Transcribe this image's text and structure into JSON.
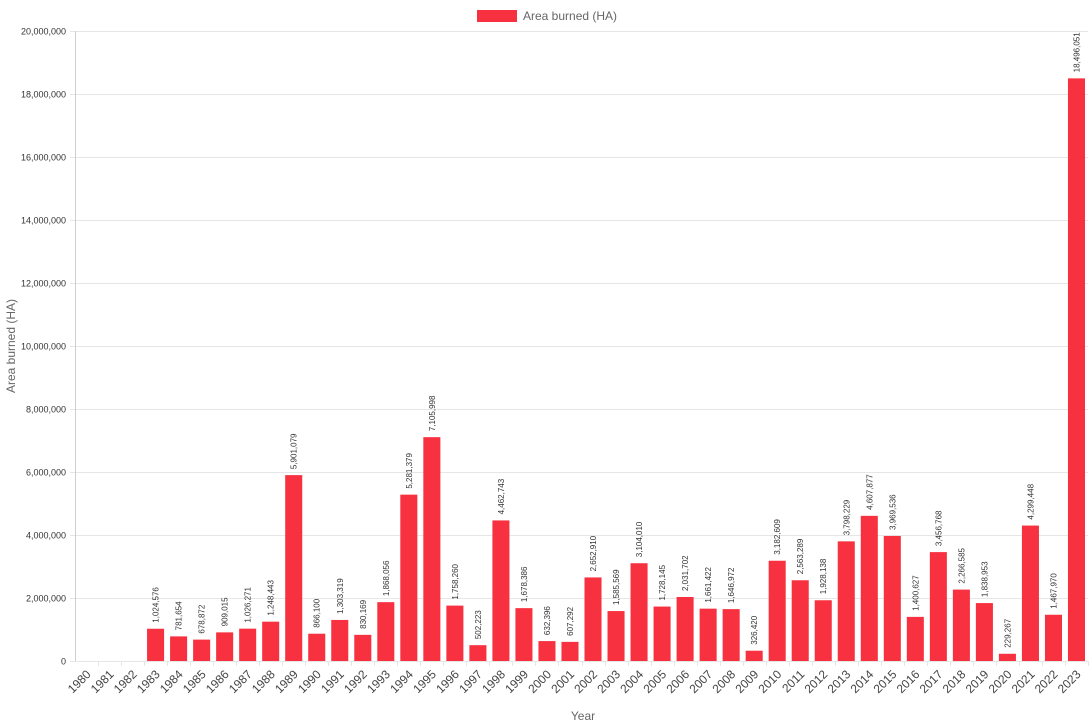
{
  "chart_data": {
    "type": "bar",
    "title": "",
    "xlabel": "Year",
    "ylabel": "Area burned (HA)",
    "ylim": [
      0,
      20000000
    ],
    "yticks": [
      0,
      2000000,
      4000000,
      6000000,
      8000000,
      10000000,
      12000000,
      14000000,
      16000000,
      18000000,
      20000000
    ],
    "ytick_labels": [
      "0",
      "2,000,000",
      "4,000,000",
      "6,000,000",
      "8,000,000",
      "10,000,000",
      "12,000,000",
      "14,000,000",
      "16,000,000",
      "18,000,000",
      "20,000,000"
    ],
    "grid": true,
    "legend": {
      "position": "top-center",
      "entries": [
        "Area burned (HA)"
      ]
    },
    "categories": [
      "1980",
      "1981",
      "1982",
      "1983",
      "1984",
      "1985",
      "1986",
      "1987",
      "1988",
      "1989",
      "1990",
      "1991",
      "1992",
      "1993",
      "1994",
      "1995",
      "1996",
      "1997",
      "1998",
      "1999",
      "2000",
      "2001",
      "2002",
      "2003",
      "2004",
      "2005",
      "2006",
      "2007",
      "2008",
      "2009",
      "2010",
      "2011",
      "2012",
      "2013",
      "2014",
      "2015",
      "2016",
      "2017",
      "2018",
      "2019",
      "2020",
      "2021",
      "2022",
      "2023"
    ],
    "series": [
      {
        "name": "Area burned (HA)",
        "color": "#f7313f",
        "values": [
          null,
          null,
          null,
          1024576,
          781654,
          678872,
          909015,
          1026271,
          1248443,
          5901079,
          866100,
          1303319,
          830169,
          1868056,
          5281379,
          7105998,
          1758260,
          502223,
          4462743,
          1678386,
          632396,
          607292,
          2652910,
          1585569,
          3104010,
          1728145,
          2031702,
          1661422,
          1646972,
          326420,
          3182609,
          2563289,
          1928138,
          3798229,
          4607877,
          3969536,
          1400627,
          3456768,
          2266585,
          1838953,
          229267,
          4299448,
          1467970,
          18496051
        ],
        "labels": [
          "",
          "",
          "",
          "1,024,576",
          "781,654",
          "678,872",
          "909,015",
          "1,026,271",
          "1,248,443",
          "5,901,079",
          "866,100",
          "1,303,319",
          "830,169",
          "1,868,056",
          "5,281,379",
          "7,105,998",
          "1,758,260",
          "502,223",
          "4,462,743",
          "1,678,386",
          "632,396",
          "607,292",
          "2,652,910",
          "1,585,569",
          "3,104,010",
          "1,728,145",
          "2,031,702",
          "1,661,422",
          "1,646,972",
          "326,420",
          "3,182,609",
          "2,563,289",
          "1,928,138",
          "3,798,229",
          "4,607,877",
          "3,969,536",
          "1,400,627",
          "3,456,768",
          "2,266,585",
          "1,838,953",
          "229,267",
          "4,299,448",
          "1,467,970",
          "18,496,051"
        ]
      }
    ]
  }
}
